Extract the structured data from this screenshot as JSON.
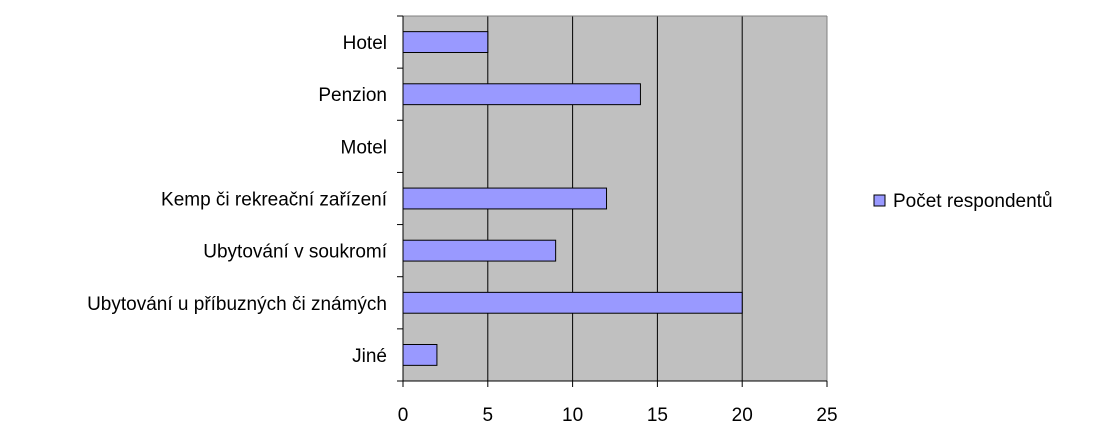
{
  "chart_data": {
    "type": "bar",
    "orientation": "horizontal",
    "categories": [
      "Hotel",
      "Penzion",
      "Motel",
      "Kemp či rekreační zařízení",
      "Ubytování v soukromí",
      "Ubytování u příbuzných či známých",
      "Jiné"
    ],
    "series": [
      {
        "name": "Počet respondentů",
        "values": [
          5,
          14,
          0,
          12,
          9,
          20,
          2
        ],
        "color": "#9999ff"
      }
    ],
    "xlim": [
      0,
      25
    ],
    "x_ticks": [
      "0",
      "5",
      "10",
      "15",
      "20",
      "25"
    ],
    "grid": "vertical",
    "plot_background": "#c0c0c0",
    "legend_position": "right"
  }
}
